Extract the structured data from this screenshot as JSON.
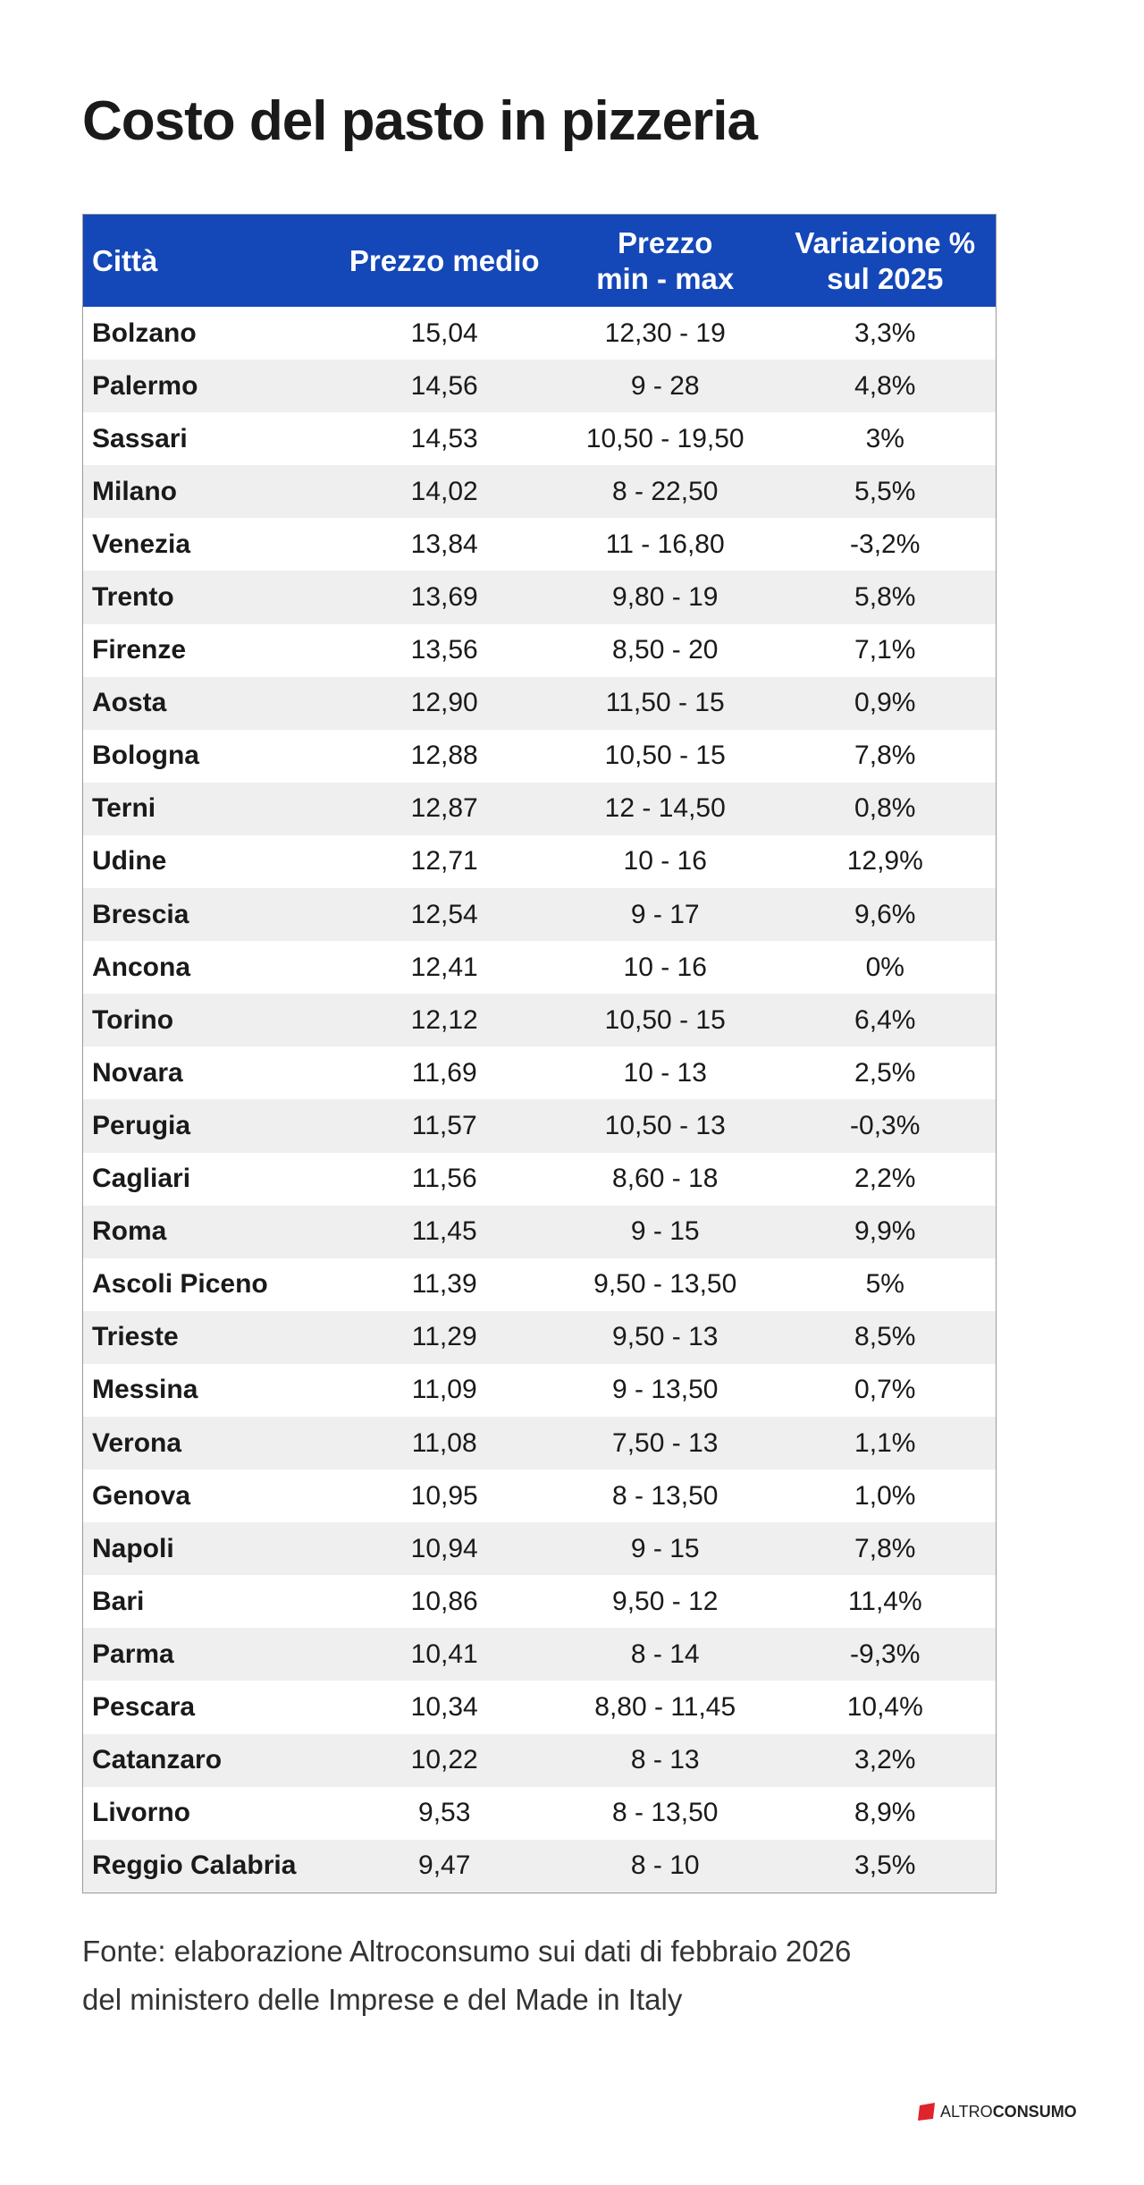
{
  "header": {
    "title": "Costo del pasto in pizzeria"
  },
  "table": {
    "columns": [
      [
        "Città"
      ],
      [
        "Prezzo medio"
      ],
      [
        "Prezzo",
        "min - max"
      ],
      [
        "Variazione %",
        "sul 2025"
      ]
    ],
    "rows": [
      [
        "Bolzano",
        "15,04",
        "12,30 - 19",
        "3,3%"
      ],
      [
        "Palermo",
        "14,56",
        "9 - 28",
        "4,8%"
      ],
      [
        "Sassari",
        "14,53",
        "10,50 - 19,50",
        "3%"
      ],
      [
        "Milano",
        "14,02",
        "8 - 22,50",
        "5,5%"
      ],
      [
        "Venezia",
        "13,84",
        "11 - 16,80",
        "-3,2%"
      ],
      [
        "Trento",
        "13,69",
        "9,80 - 19",
        "5,8%"
      ],
      [
        "Firenze",
        "13,56",
        "8,50 - 20",
        "7,1%"
      ],
      [
        "Aosta",
        "12,90",
        "11,50 - 15",
        "0,9%"
      ],
      [
        "Bologna",
        "12,88",
        "10,50 - 15",
        "7,8%"
      ],
      [
        "Terni",
        "12,87",
        "12 - 14,50",
        "0,8%"
      ],
      [
        "Udine",
        "12,71",
        "10 - 16",
        "12,9%"
      ],
      [
        "Brescia",
        "12,54",
        "9 - 17",
        "9,6%"
      ],
      [
        "Ancona",
        "12,41",
        "10 - 16",
        "0%"
      ],
      [
        "Torino",
        "12,12",
        "10,50 - 15",
        "6,4%"
      ],
      [
        "Novara",
        "11,69",
        "10 - 13",
        "2,5%"
      ],
      [
        "Perugia",
        "11,57",
        "10,50 - 13",
        "-0,3%"
      ],
      [
        "Cagliari",
        "11,56",
        "8,60 - 18",
        "2,2%"
      ],
      [
        "Roma",
        "11,45",
        "9 - 15",
        "9,9%"
      ],
      [
        "Ascoli Piceno",
        "11,39",
        "9,50 - 13,50",
        "5%"
      ],
      [
        "Trieste",
        "11,29",
        "9,50 - 13",
        "8,5%"
      ],
      [
        "Messina",
        "11,09",
        "9 - 13,50",
        "0,7%"
      ],
      [
        "Verona",
        "11,08",
        "7,50 - 13",
        "1,1%"
      ],
      [
        "Genova",
        "10,95",
        "8 - 13,50",
        "1,0%"
      ],
      [
        "Napoli",
        "10,94",
        "9 - 15",
        "7,8%"
      ],
      [
        "Bari",
        "10,86",
        "9,50 - 12",
        "11,4%"
      ],
      [
        "Parma",
        "10,41",
        "8 - 14",
        "-9,3%"
      ],
      [
        "Pescara",
        "10,34",
        "8,80 - 11,45",
        "10,4%"
      ],
      [
        "Catanzaro",
        "10,22",
        "8 - 13",
        "3,2%"
      ],
      [
        "Livorno",
        "9,53",
        "8 - 13,50",
        "8,9%"
      ],
      [
        "Reggio Calabria",
        "9,47",
        "8 - 10",
        "3,5%"
      ]
    ]
  },
  "source": [
    "Fonte: elaborazione Altroconsumo sui dati di febbraio 2026",
    "del ministero delle Imprese e del Made in Italy"
  ],
  "logo": [
    "ALTRO",
    "CONSUMO"
  ]
}
